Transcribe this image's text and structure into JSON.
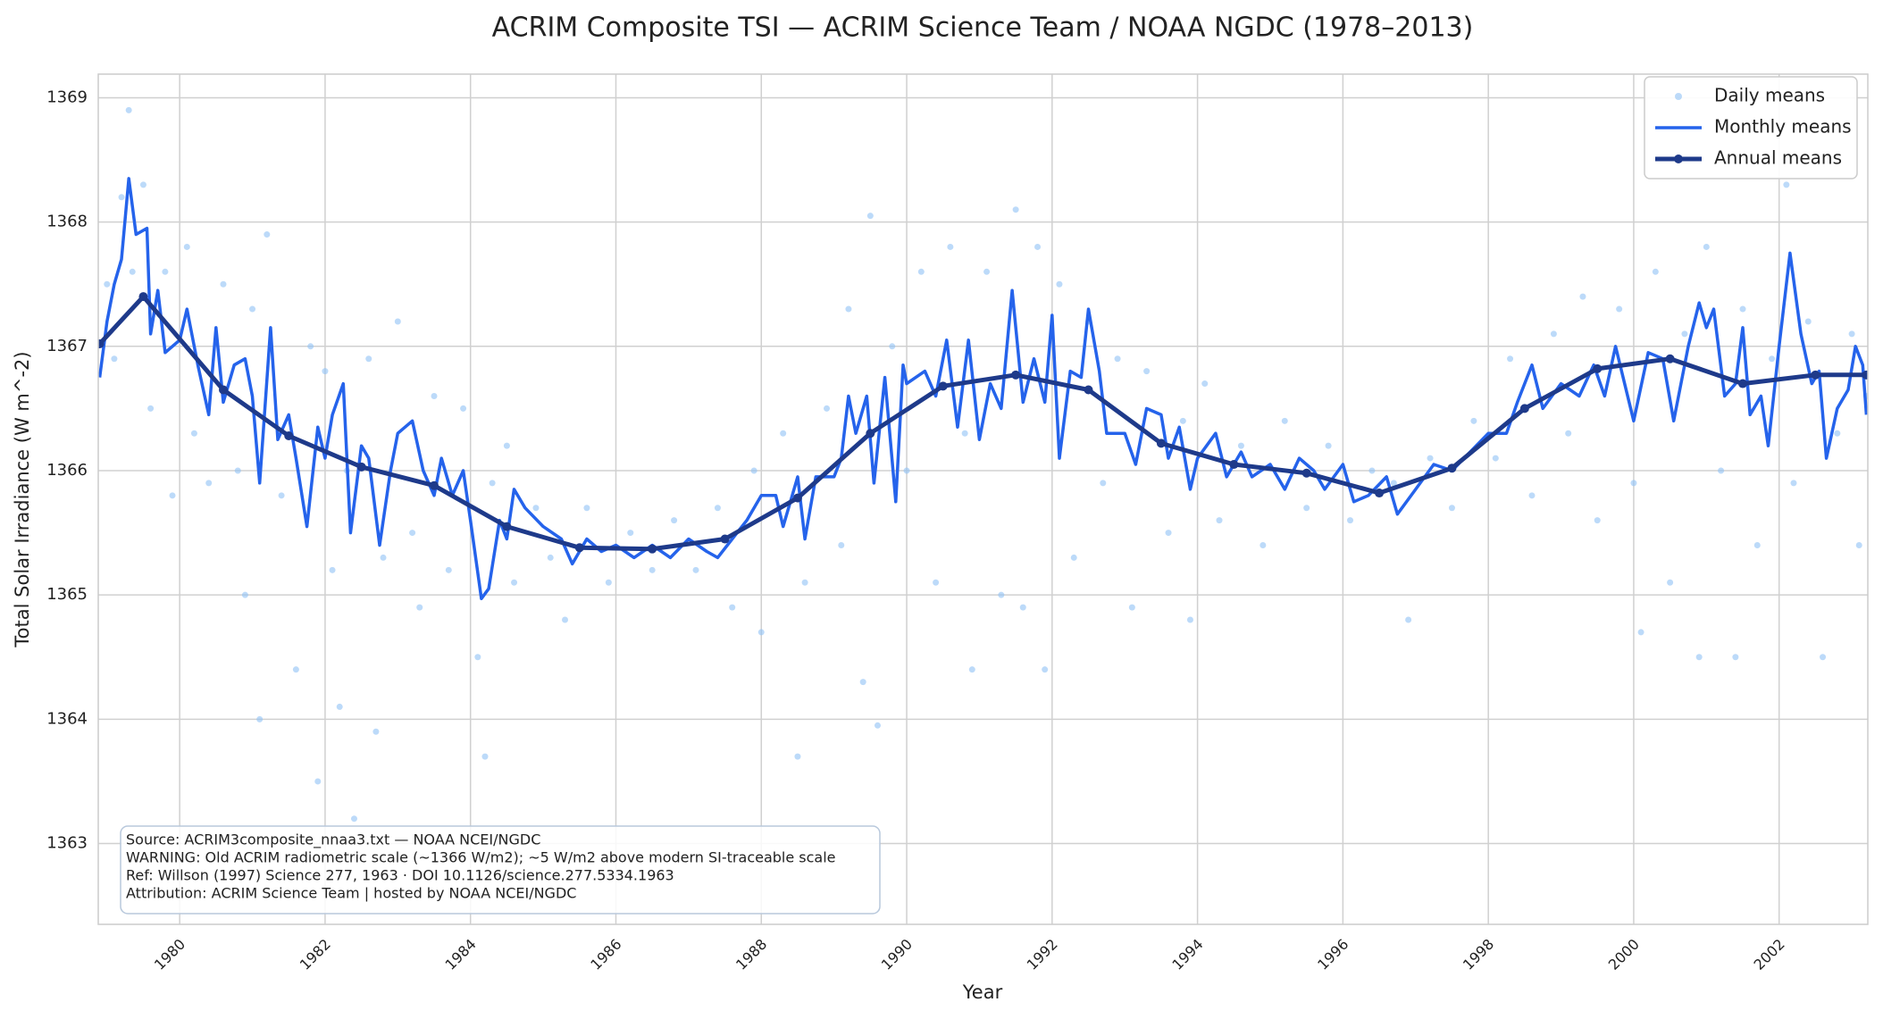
{
  "chart_data": {
    "type": "line",
    "title": "ACRIM Composite TSI — ACRIM Science Team / NOAA NGDC (1978–2013)",
    "xlabel": "Year",
    "ylabel": "Total Solar Irradiance (W m^-2)",
    "xlim": [
      1978.88,
      2003.22
    ],
    "ylim": [
      1362.35,
      1369.19
    ],
    "xticks": [
      1980,
      1982,
      1984,
      1986,
      1988,
      1990,
      1992,
      1994,
      1996,
      1998,
      2000,
      2002
    ],
    "yticks": [
      1363,
      1364,
      1365,
      1366,
      1367,
      1368,
      1369
    ],
    "grid": true,
    "legend": "upper right",
    "annotation": [
      "Source: ACRIM3composite_nnaa3.txt — NOAA NCEI/NGDC",
      "WARNING: Old ACRIM radiometric scale (~1366 W/m2); ~5 W/m2 above modern SI-traceable scale",
      "Ref: Willson (1997) Science 277, 1963 · DOI 10.1126/science.277.5334.1963",
      "Attribution: ACRIM Science Team | hosted by NOAA NCEI/NGDC"
    ],
    "series": [
      {
        "name": "Daily means",
        "color": "#90c2f5",
        "style": "scatter",
        "x": [
          1979.0,
          1979.1,
          1979.2,
          1979.3,
          1979.35,
          1979.5,
          1979.6,
          1979.8,
          1979.9,
          1980.1,
          1980.2,
          1980.4,
          1980.6,
          1980.8,
          1980.9,
          1981.0,
          1981.1,
          1981.2,
          1981.4,
          1981.6,
          1981.8,
          1981.9,
          1982.0,
          1982.1,
          1982.2,
          1982.3,
          1982.4,
          1982.6,
          1982.7,
          1982.8,
          1983.0,
          1983.2,
          1983.3,
          1983.5,
          1983.7,
          1983.9,
          1984.1,
          1984.2,
          1984.3,
          1984.5,
          1984.6,
          1984.9,
          1985.1,
          1985.3,
          1985.6,
          1985.9,
          1986.2,
          1986.5,
          1986.8,
          1987.1,
          1987.4,
          1987.6,
          1987.9,
          1988.0,
          1988.3,
          1988.5,
          1988.6,
          1988.9,
          1989.1,
          1989.2,
          1989.4,
          1989.5,
          1989.6,
          1989.8,
          1990.0,
          1990.2,
          1990.4,
          1990.6,
          1990.8,
          1990.9,
          1991.1,
          1991.3,
          1991.5,
          1991.6,
          1991.8,
          1991.9,
          1992.1,
          1992.3,
          1992.5,
          1992.7,
          1992.9,
          1993.1,
          1993.3,
          1993.6,
          1993.8,
          1993.9,
          1994.1,
          1994.3,
          1994.6,
          1994.9,
          1995.2,
          1995.5,
          1995.8,
          1996.1,
          1996.4,
          1996.7,
          1996.9,
          1997.2,
          1997.5,
          1997.8,
          1998.1,
          1998.3,
          1998.6,
          1998.9,
          1999.1,
          1999.3,
          1999.5,
          1999.8,
          2000.0,
          2000.1,
          2000.3,
          2000.5,
          2000.7,
          2000.9,
          2001.0,
          2001.2,
          2001.4,
          2001.5,
          2001.7,
          2001.9,
          2002.1,
          2002.2,
          2002.4,
          2002.6,
          2002.8,
          2003.0,
          2003.1,
          2003.2
        ],
        "values": [
          1367.5,
          1366.9,
          1368.2,
          1368.9,
          1367.6,
          1368.3,
          1366.5,
          1367.6,
          1365.8,
          1367.8,
          1366.3,
          1365.9,
          1367.5,
          1366.0,
          1365.0,
          1367.3,
          1364.0,
          1367.9,
          1365.8,
          1364.4,
          1367.0,
          1363.5,
          1366.8,
          1365.2,
          1364.1,
          1366.0,
          1363.2,
          1366.9,
          1363.9,
          1365.3,
          1367.2,
          1365.5,
          1364.9,
          1366.6,
          1365.2,
          1366.5,
          1364.5,
          1363.7,
          1365.9,
          1366.2,
          1365.1,
          1365.7,
          1365.3,
          1364.8,
          1365.7,
          1365.1,
          1365.5,
          1365.2,
          1365.6,
          1365.2,
          1365.7,
          1364.9,
          1366.0,
          1364.7,
          1366.3,
          1363.7,
          1365.1,
          1366.5,
          1365.4,
          1367.3,
          1364.3,
          1368.05,
          1363.95,
          1367.0,
          1366.0,
          1367.6,
          1365.1,
          1367.8,
          1366.3,
          1364.4,
          1367.6,
          1365.0,
          1368.1,
          1364.9,
          1367.8,
          1364.4,
          1367.5,
          1365.3,
          1367.2,
          1365.9,
          1366.9,
          1364.9,
          1366.8,
          1365.5,
          1366.4,
          1364.8,
          1366.7,
          1365.6,
          1366.2,
          1365.4,
          1366.4,
          1365.7,
          1366.2,
          1365.6,
          1366.0,
          1365.9,
          1364.8,
          1366.1,
          1365.7,
          1366.4,
          1366.1,
          1366.9,
          1365.8,
          1367.1,
          1366.3,
          1367.4,
          1365.6,
          1367.3,
          1365.9,
          1364.7,
          1367.6,
          1365.1,
          1367.1,
          1364.5,
          1367.8,
          1366.0,
          1364.5,
          1367.3,
          1365.4,
          1366.9,
          1368.3,
          1365.9,
          1367.2,
          1364.5,
          1366.3,
          1367.1,
          1365.4,
          1366.6
        ]
      },
      {
        "name": "Monthly means",
        "color": "#2563eb",
        "style": "line",
        "x": [
          1978.9,
          1979.0,
          1979.1,
          1979.2,
          1979.3,
          1979.4,
          1979.55,
          1979.6,
          1979.7,
          1979.8,
          1980.0,
          1980.1,
          1980.25,
          1980.4,
          1980.5,
          1980.6,
          1980.75,
          1980.9,
          1981.0,
          1981.1,
          1981.25,
          1981.35,
          1981.5,
          1981.6,
          1981.75,
          1981.9,
          1982.0,
          1982.1,
          1982.25,
          1982.35,
          1982.5,
          1982.6,
          1982.75,
          1982.9,
          1983.0,
          1983.2,
          1983.35,
          1983.5,
          1983.6,
          1983.75,
          1983.9,
          1984.0,
          1984.15,
          1984.25,
          1984.4,
          1984.5,
          1984.6,
          1984.75,
          1985.0,
          1985.25,
          1985.4,
          1985.6,
          1985.8,
          1986.0,
          1986.25,
          1986.5,
          1986.75,
          1987.0,
          1987.25,
          1987.4,
          1987.6,
          1987.8,
          1988.0,
          1988.2,
          1988.3,
          1988.5,
          1988.6,
          1988.75,
          1989.0,
          1989.1,
          1989.2,
          1989.3,
          1989.45,
          1989.55,
          1989.7,
          1989.85,
          1989.95,
          1990.0,
          1990.25,
          1990.4,
          1990.55,
          1990.7,
          1990.85,
          1991.0,
          1991.15,
          1991.3,
          1991.45,
          1991.6,
          1991.75,
          1991.9,
          1992.0,
          1992.1,
          1992.25,
          1992.4,
          1992.5,
          1992.65,
          1992.75,
          1993.0,
          1993.15,
          1993.3,
          1993.5,
          1993.6,
          1993.75,
          1993.9,
          1994.0,
          1994.25,
          1994.4,
          1994.6,
          1994.75,
          1995.0,
          1995.2,
          1995.4,
          1995.6,
          1995.75,
          1996.0,
          1996.15,
          1996.35,
          1996.6,
          1996.75,
          1997.0,
          1997.25,
          1997.5,
          1997.75,
          1998.0,
          1998.25,
          1998.4,
          1998.6,
          1998.75,
          1999.0,
          1999.25,
          1999.45,
          1999.6,
          1999.75,
          2000.0,
          2000.2,
          2000.4,
          2000.55,
          2000.75,
          2000.9,
          2001.0,
          2001.1,
          2001.25,
          2001.4,
          2001.5,
          2001.6,
          2001.75,
          2001.85,
          2002.0,
          2002.15,
          2002.3,
          2002.45,
          2002.55,
          2002.65,
          2002.8,
          2002.95,
          2003.05,
          2003.15,
          2003.2
        ],
        "values": [
          1366.75,
          1367.2,
          1367.5,
          1367.7,
          1368.35,
          1367.9,
          1367.95,
          1367.1,
          1367.45,
          1366.95,
          1367.05,
          1367.3,
          1366.85,
          1366.45,
          1367.15,
          1366.55,
          1366.85,
          1366.9,
          1366.6,
          1365.9,
          1367.15,
          1366.25,
          1366.45,
          1366.1,
          1365.55,
          1366.35,
          1366.1,
          1366.45,
          1366.7,
          1365.5,
          1366.2,
          1366.1,
          1365.4,
          1366.0,
          1366.3,
          1366.4,
          1366.0,
          1365.8,
          1366.1,
          1365.8,
          1366.0,
          1365.6,
          1364.97,
          1365.05,
          1365.6,
          1365.45,
          1365.85,
          1365.7,
          1365.55,
          1365.45,
          1365.25,
          1365.45,
          1365.35,
          1365.4,
          1365.3,
          1365.4,
          1365.3,
          1365.45,
          1365.35,
          1365.3,
          1365.45,
          1365.6,
          1365.8,
          1365.8,
          1365.55,
          1365.95,
          1365.45,
          1365.95,
          1365.95,
          1366.1,
          1366.6,
          1366.3,
          1366.6,
          1365.9,
          1366.75,
          1365.75,
          1366.85,
          1366.7,
          1366.8,
          1366.6,
          1367.05,
          1366.35,
          1367.05,
          1366.25,
          1366.7,
          1366.5,
          1367.45,
          1366.55,
          1366.9,
          1366.55,
          1367.25,
          1366.1,
          1366.8,
          1366.75,
          1367.3,
          1366.8,
          1366.3,
          1366.3,
          1366.05,
          1366.5,
          1366.45,
          1366.1,
          1366.35,
          1365.85,
          1366.1,
          1366.3,
          1365.95,
          1366.15,
          1365.95,
          1366.05,
          1365.85,
          1366.1,
          1366.0,
          1365.85,
          1366.05,
          1365.75,
          1365.8,
          1365.95,
          1365.65,
          1365.85,
          1366.05,
          1366.0,
          1366.15,
          1366.3,
          1366.3,
          1366.55,
          1366.85,
          1366.5,
          1366.7,
          1366.6,
          1366.85,
          1366.6,
          1367.0,
          1366.4,
          1366.95,
          1366.9,
          1366.4,
          1367.0,
          1367.35,
          1367.15,
          1367.3,
          1366.6,
          1366.7,
          1367.15,
          1366.45,
          1366.6,
          1366.2,
          1367.0,
          1367.75,
          1367.1,
          1366.7,
          1366.8,
          1366.1,
          1366.5,
          1366.65,
          1367.0,
          1366.85,
          1366.45
        ]
      },
      {
        "name": "Annual means",
        "color": "#1e3a8a",
        "style": "line-marker",
        "x": [
          1978.9,
          1979.5,
          1980.6,
          1981.5,
          1982.5,
          1983.5,
          1984.5,
          1985.5,
          1986.5,
          1987.5,
          1988.5,
          1989.5,
          1990.5,
          1991.5,
          1992.5,
          1993.5,
          1994.5,
          1995.5,
          1996.5,
          1997.5,
          1998.5,
          1999.5,
          2000.5,
          2001.5,
          2002.5,
          2003.2
        ],
        "values": [
          1367.02,
          1367.4,
          1366.65,
          1366.28,
          1366.03,
          1365.88,
          1365.55,
          1365.38,
          1365.37,
          1365.45,
          1365.78,
          1366.3,
          1366.68,
          1366.77,
          1366.65,
          1366.22,
          1366.05,
          1365.98,
          1365.82,
          1366.02,
          1366.5,
          1366.82,
          1366.9,
          1366.7,
          1366.77,
          1366.77
        ]
      }
    ]
  }
}
